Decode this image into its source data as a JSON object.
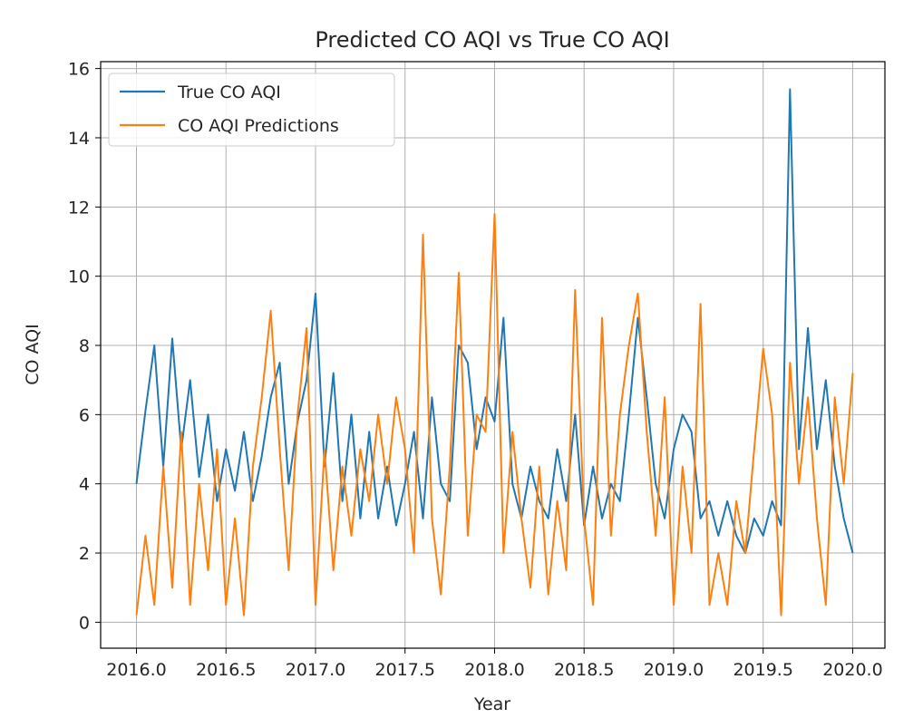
{
  "chart_data": {
    "type": "line",
    "title": "Predicted CO AQI vs True CO AQI",
    "xlabel": "Year",
    "ylabel": "CO AQI",
    "xlim": [
      2015.8,
      2020.18
    ],
    "ylim": [
      -0.75,
      16.2
    ],
    "xticks": [
      2016.0,
      2016.5,
      2017.0,
      2017.5,
      2018.0,
      2018.5,
      2019.0,
      2019.5,
      2020.0
    ],
    "xtick_labels": [
      "2016.0",
      "2016.5",
      "2017.0",
      "2017.5",
      "2018.0",
      "2018.5",
      "2019.0",
      "2019.5",
      "2020.0"
    ],
    "yticks": [
      0,
      2,
      4,
      6,
      8,
      10,
      12,
      14,
      16
    ],
    "ytick_labels": [
      "0",
      "2",
      "4",
      "6",
      "8",
      "10",
      "12",
      "14",
      "16"
    ],
    "grid": true,
    "legend_position": "top-left",
    "series": [
      {
        "name": "True CO AQI",
        "color": "#1f77b4",
        "x": [
          2016.0,
          2016.05,
          2016.1,
          2016.15,
          2016.2,
          2016.25,
          2016.3,
          2016.35,
          2016.4,
          2016.45,
          2016.5,
          2016.55,
          2016.6,
          2016.65,
          2016.7,
          2016.75,
          2016.8,
          2016.85,
          2016.9,
          2016.95,
          2017.0,
          2017.05,
          2017.1,
          2017.15,
          2017.2,
          2017.25,
          2017.3,
          2017.35,
          2017.4,
          2017.45,
          2017.5,
          2017.55,
          2017.6,
          2017.65,
          2017.7,
          2017.75,
          2017.8,
          2017.85,
          2017.9,
          2017.95,
          2018.0,
          2018.05,
          2018.1,
          2018.15,
          2018.2,
          2018.25,
          2018.3,
          2018.35,
          2018.4,
          2018.45,
          2018.5,
          2018.55,
          2018.6,
          2018.65,
          2018.7,
          2018.75,
          2018.8,
          2018.85,
          2018.9,
          2018.95,
          2019.0,
          2019.05,
          2019.1,
          2019.15,
          2019.2,
          2019.25,
          2019.3,
          2019.35,
          2019.4,
          2019.45,
          2019.5,
          2019.55,
          2019.6,
          2019.65,
          2019.7,
          2019.75,
          2019.8,
          2019.85,
          2019.9,
          2019.95,
          2020.0
        ],
        "values": [
          4.0,
          6.1,
          8.0,
          4.5,
          8.2,
          5.0,
          7.0,
          4.2,
          6.0,
          3.5,
          5.0,
          3.8,
          5.5,
          3.5,
          4.8,
          6.5,
          7.5,
          4.0,
          5.8,
          7.0,
          9.5,
          4.5,
          7.2,
          3.5,
          6.0,
          3.0,
          5.5,
          3.0,
          4.5,
          2.8,
          4.0,
          5.5,
          3.0,
          6.5,
          4.0,
          3.5,
          8.0,
          7.5,
          5.0,
          6.5,
          5.8,
          8.8,
          4.0,
          3.0,
          4.5,
          3.5,
          3.0,
          5.0,
          3.5,
          6.0,
          2.8,
          4.5,
          3.0,
          4.0,
          3.5,
          6.0,
          8.8,
          6.5,
          4.0,
          3.0,
          5.0,
          6.0,
          5.5,
          3.0,
          3.5,
          2.5,
          3.5,
          2.5,
          2.0,
          3.0,
          2.5,
          3.5,
          2.8,
          15.4,
          5.0,
          8.5,
          5.0,
          7.0,
          4.5,
          3.0,
          2.0
        ]
      },
      {
        "name": "CO AQI Predictions",
        "color": "#ff7f0e",
        "x": [
          2016.0,
          2016.05,
          2016.1,
          2016.15,
          2016.2,
          2016.25,
          2016.3,
          2016.35,
          2016.4,
          2016.45,
          2016.5,
          2016.55,
          2016.6,
          2016.65,
          2016.7,
          2016.75,
          2016.8,
          2016.85,
          2016.9,
          2016.95,
          2017.0,
          2017.05,
          2017.1,
          2017.15,
          2017.2,
          2017.25,
          2017.3,
          2017.35,
          2017.4,
          2017.45,
          2017.5,
          2017.55,
          2017.6,
          2017.65,
          2017.7,
          2017.75,
          2017.8,
          2017.85,
          2017.9,
          2017.95,
          2018.0,
          2018.05,
          2018.1,
          2018.15,
          2018.2,
          2018.25,
          2018.3,
          2018.35,
          2018.4,
          2018.45,
          2018.5,
          2018.55,
          2018.6,
          2018.65,
          2018.7,
          2018.75,
          2018.8,
          2018.85,
          2018.9,
          2018.95,
          2019.0,
          2019.05,
          2019.1,
          2019.15,
          2019.2,
          2019.25,
          2019.3,
          2019.35,
          2019.4,
          2019.45,
          2019.5,
          2019.55,
          2019.6,
          2019.65,
          2019.7,
          2019.75,
          2019.8,
          2019.85,
          2019.9,
          2019.95,
          2020.0
        ],
        "values": [
          0.2,
          2.5,
          0.5,
          4.5,
          1.0,
          5.5,
          0.5,
          4.0,
          1.5,
          5.0,
          0.5,
          3.0,
          0.2,
          4.5,
          6.5,
          9.0,
          5.0,
          1.5,
          6.0,
          8.5,
          0.5,
          5.0,
          1.5,
          4.5,
          2.5,
          5.0,
          3.5,
          6.0,
          4.0,
          6.5,
          5.0,
          2.0,
          11.2,
          3.0,
          0.8,
          4.5,
          10.1,
          2.5,
          6.0,
          5.5,
          11.8,
          2.0,
          5.5,
          3.0,
          1.0,
          4.5,
          0.8,
          3.5,
          1.5,
          9.6,
          3.0,
          0.5,
          8.8,
          2.5,
          6.0,
          8.0,
          9.5,
          5.5,
          2.5,
          6.5,
          0.5,
          4.5,
          2.0,
          9.2,
          0.5,
          2.0,
          0.5,
          3.5,
          2.0,
          5.0,
          7.9,
          6.0,
          0.2,
          7.5,
          4.0,
          6.5,
          3.0,
          0.5,
          6.5,
          4.0,
          7.2
        ]
      }
    ]
  }
}
